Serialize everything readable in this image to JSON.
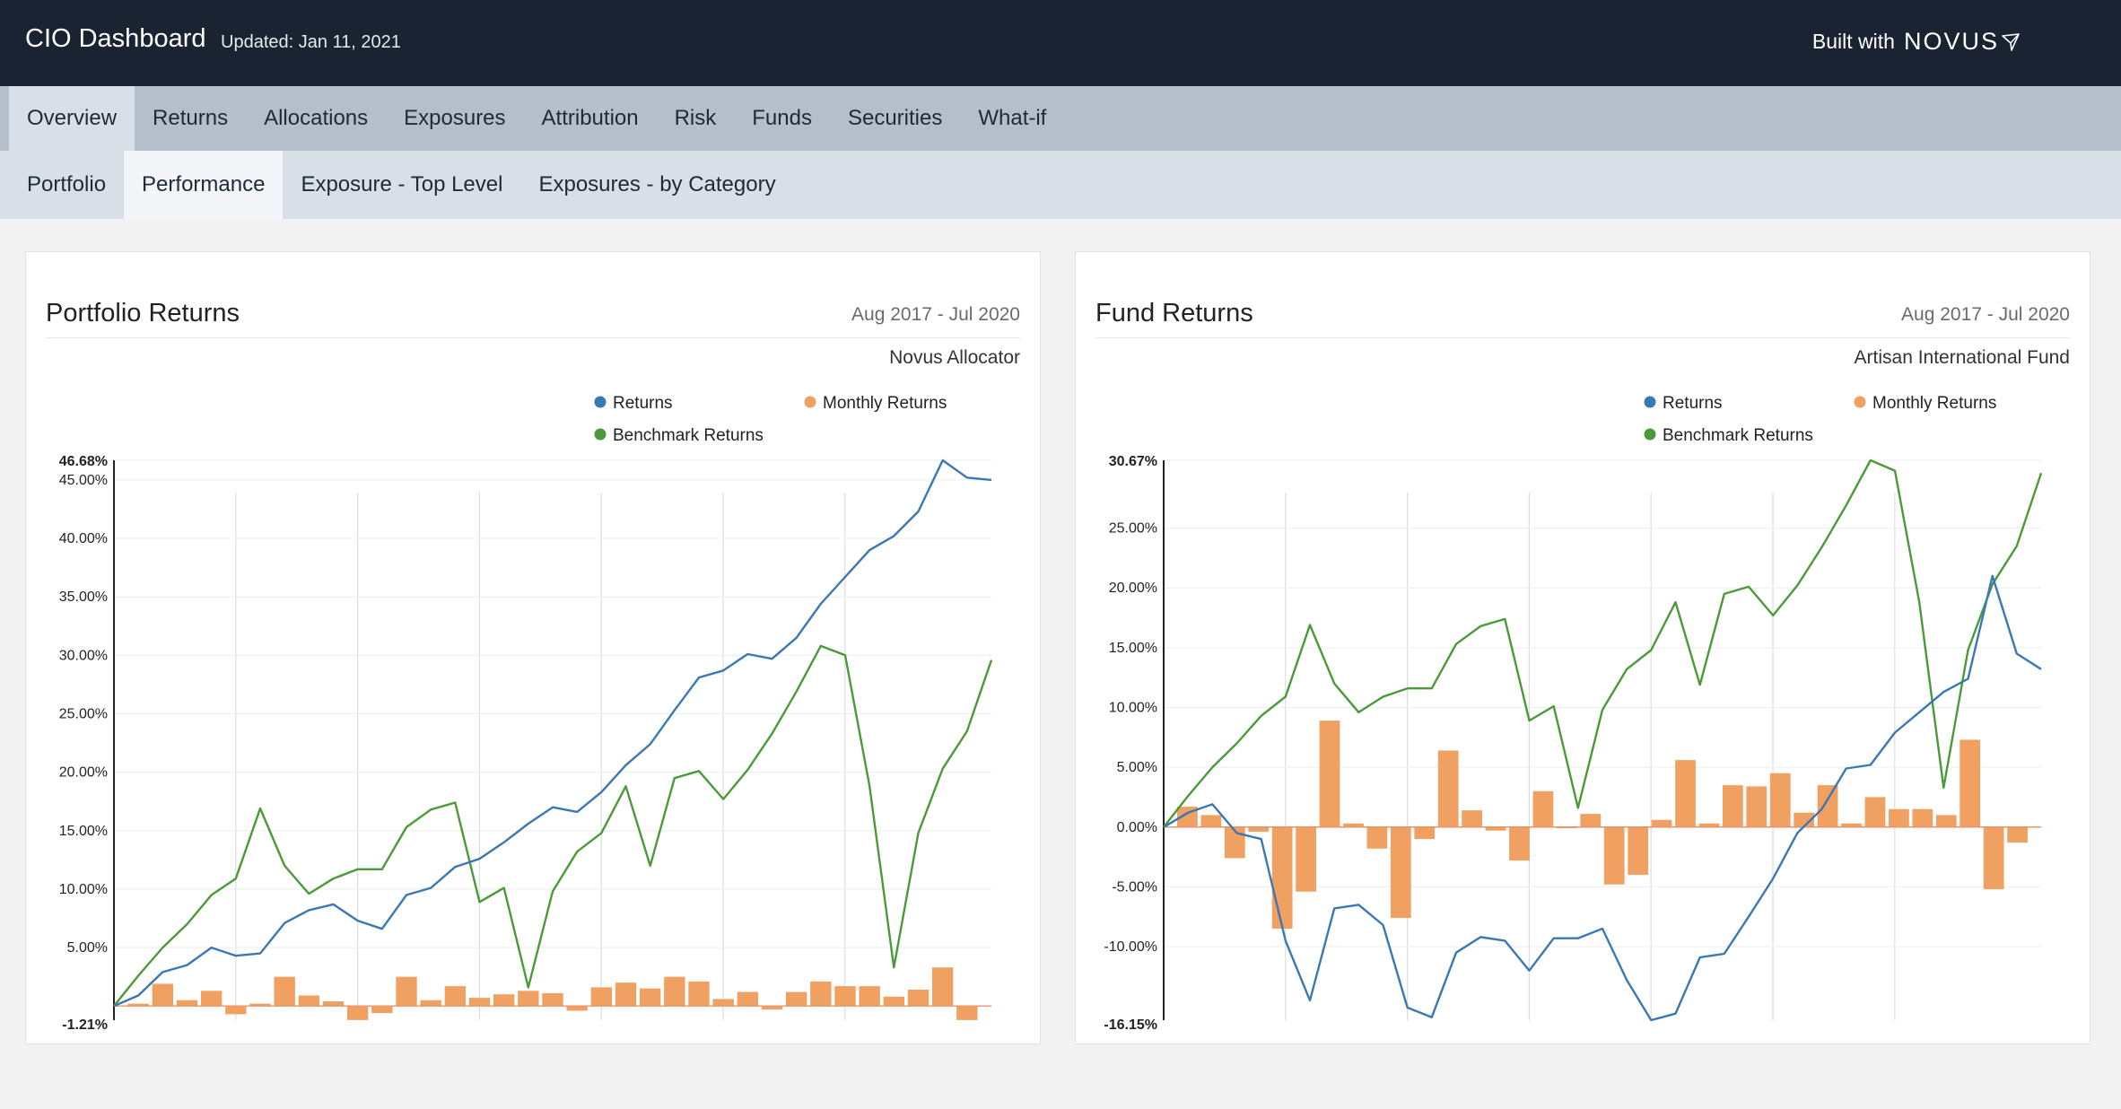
{
  "header": {
    "title": "CIO Dashboard",
    "updated": "Updated: Jan 11, 2021",
    "built_with": "Built with",
    "brand": "NOVUS"
  },
  "nav": {
    "primary_tabs": [
      {
        "label": "Overview",
        "active": true
      },
      {
        "label": "Returns",
        "active": false
      },
      {
        "label": "Allocations",
        "active": false
      },
      {
        "label": "Exposures",
        "active": false
      },
      {
        "label": "Attribution",
        "active": false
      },
      {
        "label": "Risk",
        "active": false
      },
      {
        "label": "Funds",
        "active": false
      },
      {
        "label": "Securities",
        "active": false
      },
      {
        "label": "What-if",
        "active": false
      }
    ],
    "secondary_tabs": [
      {
        "label": "Portfolio",
        "active": false
      },
      {
        "label": "Performance",
        "active": true
      },
      {
        "label": "Exposure - Top Level",
        "active": false
      },
      {
        "label": "Exposures - by Category",
        "active": false
      }
    ]
  },
  "colors": {
    "returns": "#3a78b4",
    "monthly": "#f0a060",
    "benchmark": "#4a9a38",
    "grid": "#dddddd"
  },
  "chart_data": [
    {
      "type": "line",
      "title": "Portfolio Returns",
      "date_range": "Aug 2017 - Jul 2020",
      "subtitle": "Novus Allocator",
      "legend": [
        "Returns",
        "Monthly Returns",
        "Benchmark Returns"
      ],
      "y_ticks": [
        "5.00%",
        "10.00%",
        "15.00%",
        "20.00%",
        "25.00%",
        "30.00%",
        "35.00%",
        "40.00%",
        "45.00%"
      ],
      "y_max_label": "46.68%",
      "y_min_label": "-1.21%",
      "ylim": [
        -1.21,
        46.68
      ],
      "series": [
        {
          "name": "Returns",
          "kind": "line",
          "values": [
            0,
            0.9,
            2.9,
            3.5,
            5.0,
            4.3,
            4.5,
            7.1,
            8.2,
            8.7,
            7.3,
            6.6,
            9.5,
            10.1,
            11.9,
            12.6,
            14.0,
            15.6,
            17.0,
            16.6,
            18.3,
            20.6,
            22.4,
            25.3,
            28.1,
            28.7,
            30.1,
            29.7,
            31.5,
            34.4,
            36.7,
            39.0,
            40.2,
            42.3,
            46.68,
            45.2,
            45.0
          ]
        },
        {
          "name": "Monthly Returns",
          "kind": "bar",
          "values": [
            0.2,
            1.9,
            0.5,
            1.3,
            -0.7,
            0.2,
            2.5,
            0.9,
            0.4,
            -1.2,
            -0.6,
            2.5,
            0.5,
            1.7,
            0.7,
            1.0,
            1.3,
            1.1,
            -0.4,
            1.6,
            2.0,
            1.5,
            2.5,
            2.1,
            0.6,
            1.2,
            -0.3,
            1.2,
            2.1,
            1.7,
            1.7,
            0.8,
            1.4,
            3.3,
            -1.2
          ]
        },
        {
          "name": "Benchmark Returns",
          "kind": "line",
          "values": [
            0,
            2.6,
            5.0,
            7.0,
            9.5,
            10.9,
            16.9,
            12.0,
            9.6,
            10.9,
            11.7,
            11.7,
            15.3,
            16.8,
            17.4,
            8.9,
            10.1,
            1.6,
            9.8,
            13.2,
            14.8,
            18.8,
            12.0,
            19.5,
            20.1,
            17.7,
            20.2,
            23.3,
            26.9,
            30.8,
            30.0,
            18.8,
            3.3,
            14.8,
            20.3,
            23.5,
            29.6
          ]
        }
      ]
    },
    {
      "type": "line",
      "title": "Fund Returns",
      "date_range": "Aug 2017 - Jul 2020",
      "subtitle": "Artisan International Fund",
      "legend": [
        "Returns",
        "Monthly Returns",
        "Benchmark Returns"
      ],
      "y_ticks": [
        "-10.00%",
        "-5.00%",
        "0.00%",
        "5.00%",
        "10.00%",
        "15.00%",
        "20.00%",
        "25.00%"
      ],
      "y_max_label": "30.67%",
      "y_min_label": "-16.15%",
      "ylim": [
        -16.15,
        30.67
      ],
      "series": [
        {
          "name": "Returns",
          "kind": "line",
          "values": [
            0,
            1.2,
            1.9,
            -0.5,
            -1.0,
            -9.5,
            -14.5,
            -6.8,
            -6.5,
            -8.2,
            -15.1,
            -15.9,
            -10.5,
            -9.2,
            -9.5,
            -12.0,
            -9.3,
            -9.3,
            -8.5,
            -12.8,
            -16.15,
            -15.6,
            -10.9,
            -10.6,
            -7.5,
            -4.3,
            -0.5,
            1.5,
            4.9,
            5.2,
            7.9,
            9.6,
            11.3,
            12.4,
            21.0,
            14.5,
            13.2
          ]
        },
        {
          "name": "Monthly Returns",
          "kind": "bar",
          "values": [
            1.7,
            1.0,
            -2.6,
            -0.4,
            -8.5,
            -5.4,
            8.9,
            0.3,
            -1.8,
            -7.6,
            -1.0,
            6.4,
            1.4,
            -0.3,
            -2.8,
            3.0,
            -0.1,
            1.1,
            -4.8,
            -4.0,
            0.6,
            5.6,
            0.3,
            3.5,
            3.4,
            4.5,
            1.2,
            3.5,
            0.3,
            2.5,
            1.5,
            1.5,
            1.0,
            7.3,
            -5.2,
            -1.3
          ]
        },
        {
          "name": "Benchmark Returns",
          "kind": "line",
          "values": [
            0,
            2.6,
            5.0,
            7.0,
            9.3,
            10.9,
            16.9,
            12.0,
            9.6,
            10.9,
            11.6,
            11.6,
            15.3,
            16.8,
            17.4,
            8.9,
            10.1,
            1.6,
            9.8,
            13.2,
            14.8,
            18.8,
            11.9,
            19.5,
            20.1,
            17.7,
            20.2,
            23.4,
            26.9,
            30.67,
            29.8,
            18.8,
            3.3,
            14.8,
            20.3,
            23.5,
            29.6
          ]
        }
      ]
    }
  ]
}
